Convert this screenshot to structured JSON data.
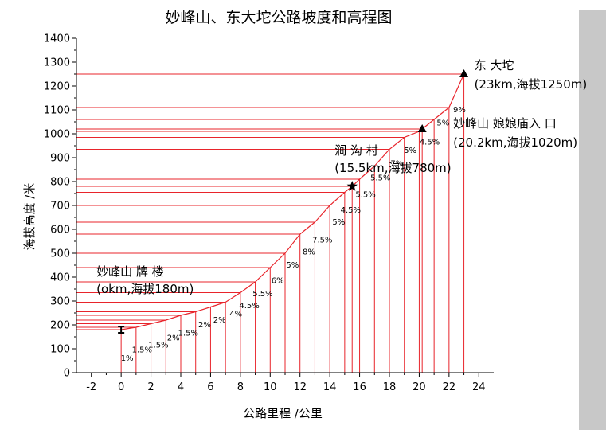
{
  "chart_data": {
    "type": "line",
    "title": "妙峰山、东大坨公路坡度和高程图",
    "xlabel": "公路里程 /公里",
    "ylabel": "海拔高度 /米",
    "xlim": [
      -3,
      25
    ],
    "ylim": [
      0,
      1400
    ],
    "xticks": [
      "-2",
      "0",
      "2",
      "4",
      "6",
      "8",
      "10",
      "12",
      "14",
      "16",
      "18",
      "20",
      "22",
      "24"
    ],
    "yticks": [
      "0",
      "100",
      "200",
      "300",
      "400",
      "500",
      "600",
      "700",
      "800",
      "900",
      "1000",
      "1100",
      "1200",
      "1300",
      "1400"
    ],
    "grid": false,
    "line_color": "#e8242b",
    "series": [
      {
        "x": [
          0,
          1,
          2,
          3,
          4,
          5,
          6,
          7,
          8,
          9,
          10,
          11,
          12,
          13,
          14,
          15,
          15.5,
          16,
          17,
          18,
          19,
          20,
          20.2,
          21,
          22,
          23
        ],
        "values": [
          180,
          190,
          205,
          220,
          240,
          255,
          275,
          295,
          335,
          380,
          440,
          500,
          580,
          630,
          700,
          755,
          780,
          810,
          865,
          935,
          985,
          1010,
          1020,
          1060,
          1110,
          1250
        ]
      }
    ],
    "grade_labels": [
      {
        "text": "1%",
        "x": 0.4,
        "y": 50
      },
      {
        "text": "1.5%",
        "x": 1.4,
        "y": 85
      },
      {
        "text": "1.5%",
        "x": 2.5,
        "y": 105
      },
      {
        "text": "2%",
        "x": 3.5,
        "y": 135
      },
      {
        "text": "1.5%",
        "x": 4.5,
        "y": 155
      },
      {
        "text": "2%",
        "x": 5.6,
        "y": 190
      },
      {
        "text": "2%",
        "x": 6.6,
        "y": 210
      },
      {
        "text": "4%",
        "x": 7.7,
        "y": 235
      },
      {
        "text": "4.5%",
        "x": 8.6,
        "y": 270
      },
      {
        "text": "5.5%",
        "x": 9.5,
        "y": 320
      },
      {
        "text": "6%",
        "x": 10.5,
        "y": 375
      },
      {
        "text": "5%",
        "x": 11.5,
        "y": 440
      },
      {
        "text": "8%",
        "x": 12.6,
        "y": 495
      },
      {
        "text": "7.5%",
        "x": 13.5,
        "y": 545
      },
      {
        "text": "5%",
        "x": 14.6,
        "y": 620
      },
      {
        "text": "4.5%",
        "x": 15.4,
        "y": 670
      },
      {
        "text": "5.5%",
        "x": 16.4,
        "y": 735
      },
      {
        "text": "5.5%",
        "x": 17.4,
        "y": 805
      },
      {
        "text": "7%",
        "x": 18.5,
        "y": 865
      },
      {
        "text": "5%",
        "x": 19.4,
        "y": 920
      },
      {
        "text": "4.5%",
        "x": 20.7,
        "y": 955
      },
      {
        "text": "5%",
        "x": 21.6,
        "y": 1035
      },
      {
        "text": "9%",
        "x": 22.7,
        "y": 1090
      }
    ],
    "annotations": [
      {
        "lines": [
          "妙峰山  牌   楼",
          "(okm,海拔180m)"
        ],
        "x": 0,
        "y": 180,
        "marker": "I-beam"
      },
      {
        "lines": [
          "涧  沟  村",
          "(15.5km,海拔780m)"
        ],
        "x": 15.5,
        "y": 780,
        "marker": "star"
      },
      {
        "lines": [
          "妙峰山  娘娘庙入 口",
          "(20.2km,海拔1020m)"
        ],
        "x": 20.2,
        "y": 1020,
        "marker": "triangle"
      },
      {
        "lines": [
          "东 大坨",
          "(23km,海拔1250m)"
        ],
        "x": 23,
        "y": 1250,
        "marker": "triangle"
      }
    ]
  }
}
